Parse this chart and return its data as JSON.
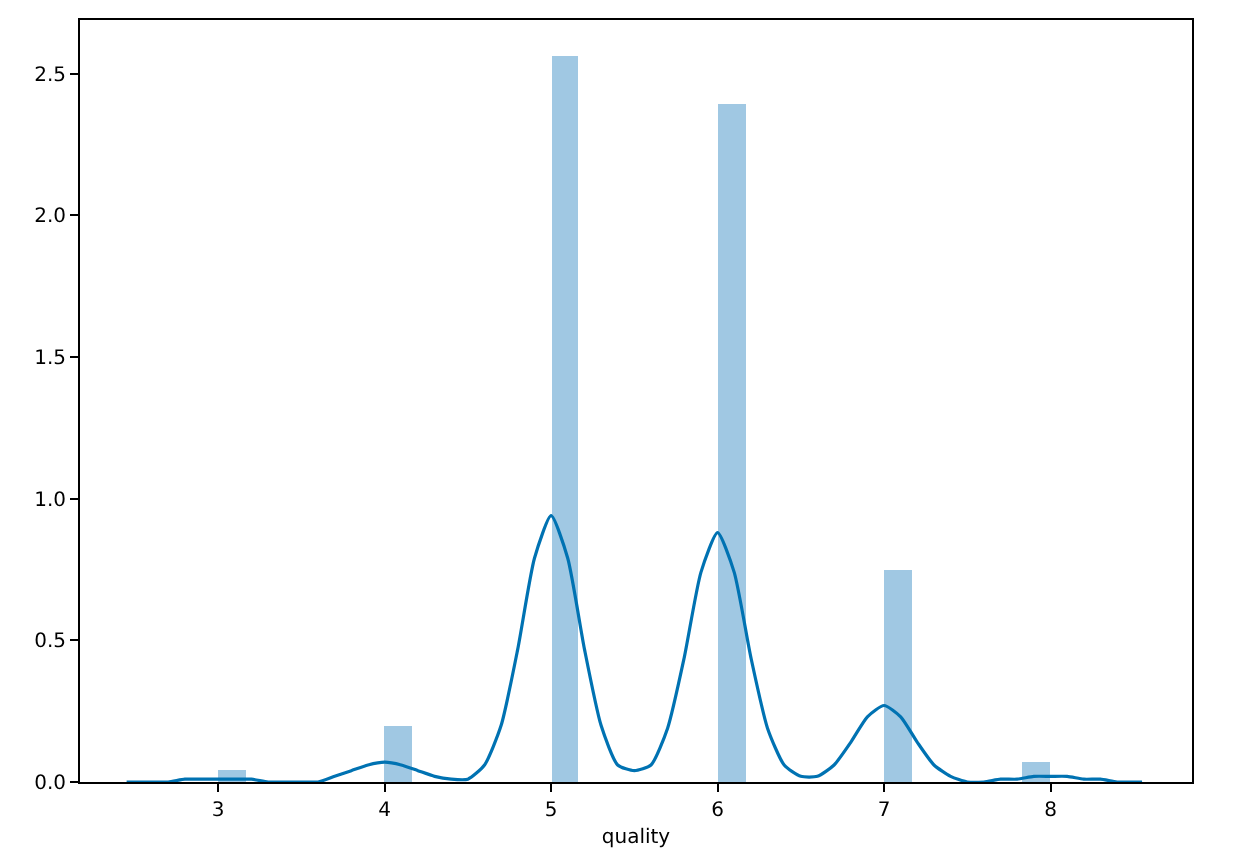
{
  "chart_data": {
    "type": "histogram",
    "xlabel": "quality",
    "bins": [
      3,
      3.167,
      3.333,
      3.5,
      3.667,
      3.833,
      4,
      4.167,
      4.333,
      4.5,
      4.667,
      4.833,
      5,
      5.167,
      5.333,
      5.5,
      5.667,
      5.833,
      6,
      6.167,
      6.333,
      6.5,
      6.667,
      6.833,
      7,
      7.167,
      7.333,
      7.5,
      7.667,
      7.833,
      8
    ],
    "values": [
      0.04,
      0,
      0,
      0,
      0,
      0,
      0.2,
      0,
      0,
      0,
      0,
      0,
      2.56,
      0,
      0,
      0,
      0,
      0,
      2.39,
      0,
      0,
      0,
      0,
      0,
      0.75,
      0,
      0,
      0,
      0,
      0.07
    ],
    "color": "#a0c8e3",
    "series": [
      {
        "type": "line",
        "color": "#0072b2",
        "x": [
          2.45,
          2.5,
          2.6,
          2.7,
          2.8,
          2.9,
          3.0,
          3.1,
          3.2,
          3.3,
          3.4,
          3.5,
          3.6,
          3.7,
          3.8,
          3.9,
          4.0,
          4.1,
          4.2,
          4.3,
          4.4,
          4.5,
          4.6,
          4.7,
          4.8,
          4.9,
          5.0,
          5.1,
          5.2,
          5.3,
          5.4,
          5.5,
          5.6,
          5.7,
          5.8,
          5.9,
          6.0,
          6.1,
          6.2,
          6.3,
          6.4,
          6.5,
          6.6,
          6.7,
          6.8,
          6.9,
          7.0,
          7.1,
          7.2,
          7.3,
          7.4,
          7.5,
          7.6,
          7.7,
          7.8,
          7.9,
          8.0,
          8.1,
          8.2,
          8.3,
          8.4,
          8.5,
          8.55
        ],
        "values": [
          0,
          0,
          0,
          0,
          0.01,
          0.01,
          0.01,
          0.01,
          0.01,
          0,
          0,
          0,
          0,
          0.02,
          0.04,
          0.06,
          0.07,
          0.06,
          0.04,
          0.02,
          0.01,
          0.01,
          0.06,
          0.2,
          0.47,
          0.79,
          0.94,
          0.79,
          0.47,
          0.2,
          0.06,
          0.04,
          0.06,
          0.19,
          0.44,
          0.74,
          0.88,
          0.74,
          0.44,
          0.19,
          0.06,
          0.02,
          0.02,
          0.06,
          0.14,
          0.23,
          0.27,
          0.23,
          0.14,
          0.06,
          0.02,
          0,
          0,
          0.01,
          0.01,
          0.02,
          0.02,
          0.02,
          0.01,
          0.01,
          0,
          0,
          0
        ]
      }
    ],
    "xlim": [
      2.17,
      8.85
    ],
    "xticks": [
      3,
      4,
      5,
      6,
      7,
      8
    ],
    "ylim": [
      0,
      2.69
    ],
    "yticks": [
      {
        "value": 0,
        "label": "0.0"
      },
      {
        "value": 0.5,
        "label": "0.5"
      },
      {
        "value": 1,
        "label": "1.0"
      },
      {
        "value": 1.5,
        "label": "1.5"
      },
      {
        "value": 2,
        "label": "2.0"
      },
      {
        "value": 2.5,
        "label": "2.5"
      }
    ]
  }
}
